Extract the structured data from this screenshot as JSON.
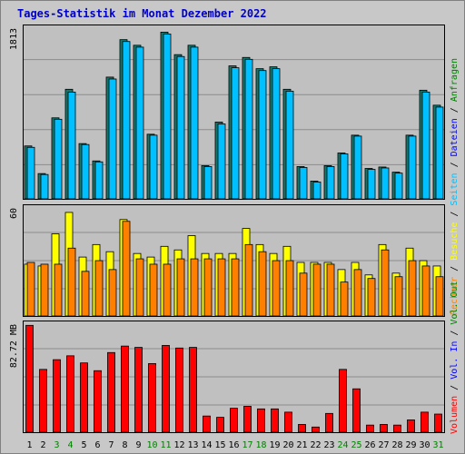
{
  "chart_data": {
    "type": "bar",
    "title": "Tages-Statistik im Monat Dezember 2022",
    "days": [
      "1",
      "2",
      "3",
      "4",
      "5",
      "6",
      "7",
      "8",
      "9",
      "10",
      "11",
      "12",
      "13",
      "14",
      "15",
      "16",
      "17",
      "18",
      "19",
      "20",
      "21",
      "22",
      "23",
      "24",
      "25",
      "26",
      "27",
      "28",
      "29",
      "30",
      "31"
    ],
    "weekend_days": [
      "3",
      "4",
      "10",
      "11",
      "17",
      "18",
      "24",
      "25",
      "31"
    ],
    "colors": {
      "anfragen": "#008000",
      "dateien": "#0000ff",
      "seiten": "#00c0ff",
      "besuche": "#ffff00",
      "rechner": "#ff8000",
      "vol_out": "#008000",
      "vol_in": "#0000ff",
      "volumen": "#ff0000",
      "weekend_label": "#008000",
      "weekday_label": "#000000"
    },
    "top_panel": {
      "max_label": "1813",
      "ymax": 1813,
      "series": [
        {
          "name": "Anfragen",
          "values": [
            565,
            270,
            865,
            1170,
            590,
            405,
            1300,
            1700,
            1640,
            690,
            1780,
            1540,
            1640,
            355,
            820,
            1420,
            1510,
            1390,
            1410,
            1170,
            345,
            190,
            355,
            490,
            680,
            325,
            340,
            285,
            680,
            1160,
            1000
          ]
        },
        {
          "name": "Dateien",
          "values": [
            550,
            260,
            850,
            1140,
            580,
            395,
            1280,
            1680,
            1620,
            680,
            1760,
            1520,
            1620,
            345,
            800,
            1400,
            1490,
            1370,
            1390,
            1150,
            335,
            180,
            345,
            480,
            670,
            315,
            330,
            275,
            670,
            1140,
            980
          ]
        }
      ]
    },
    "middle_panel": {
      "max_label": "60",
      "ymax": 60,
      "series": [
        {
          "name": "Besuche",
          "values": [
            29,
            28,
            46,
            58,
            33,
            40,
            36,
            54,
            35,
            33,
            39,
            37,
            45,
            35,
            35,
            35,
            49,
            40,
            35,
            39,
            30,
            30,
            30,
            26,
            30,
            23,
            40,
            24,
            38,
            31,
            28
          ]
        },
        {
          "name": "Rechner",
          "values": [
            30,
            29,
            29,
            38,
            25,
            31,
            26,
            53,
            32,
            29,
            29,
            32,
            32,
            32,
            32,
            32,
            40,
            36,
            31,
            31,
            24,
            29,
            29,
            19,
            26,
            21,
            37,
            22,
            31,
            28,
            22
          ]
        }
      ]
    },
    "bottom_panel": {
      "max_label": "82.72 MB",
      "ymax": 82.72,
      "series": [
        {
          "name": "Volumen",
          "values": [
            82.5,
            48.5,
            56,
            59,
            53.5,
            47.5,
            61.5,
            66.5,
            65.5,
            53,
            67,
            65,
            65.5,
            12.5,
            11.5,
            18.5,
            20,
            18,
            18,
            15.5,
            6,
            4,
            14.5,
            48.5,
            33.5,
            5.5,
            6,
            5.5,
            9.5,
            15.5,
            14
          ]
        }
      ]
    },
    "legend_right": {
      "top_part": [
        {
          "text": "Anfragen",
          "key": "anfragen"
        },
        {
          "text": "Dateien",
          "key": "dateien"
        },
        {
          "text": "Seiten",
          "key": "seiten"
        },
        {
          "text": "Besuche",
          "key": "besuche"
        },
        {
          "text": "Rechner",
          "key": "rechner"
        }
      ],
      "bottom_part": [
        {
          "text": "Vol. Out",
          "key": "vol_out"
        },
        {
          "text": "Vol. In",
          "key": "vol_in"
        },
        {
          "text": "Volumen",
          "key": "volumen"
        }
      ],
      "separator": " / "
    }
  }
}
